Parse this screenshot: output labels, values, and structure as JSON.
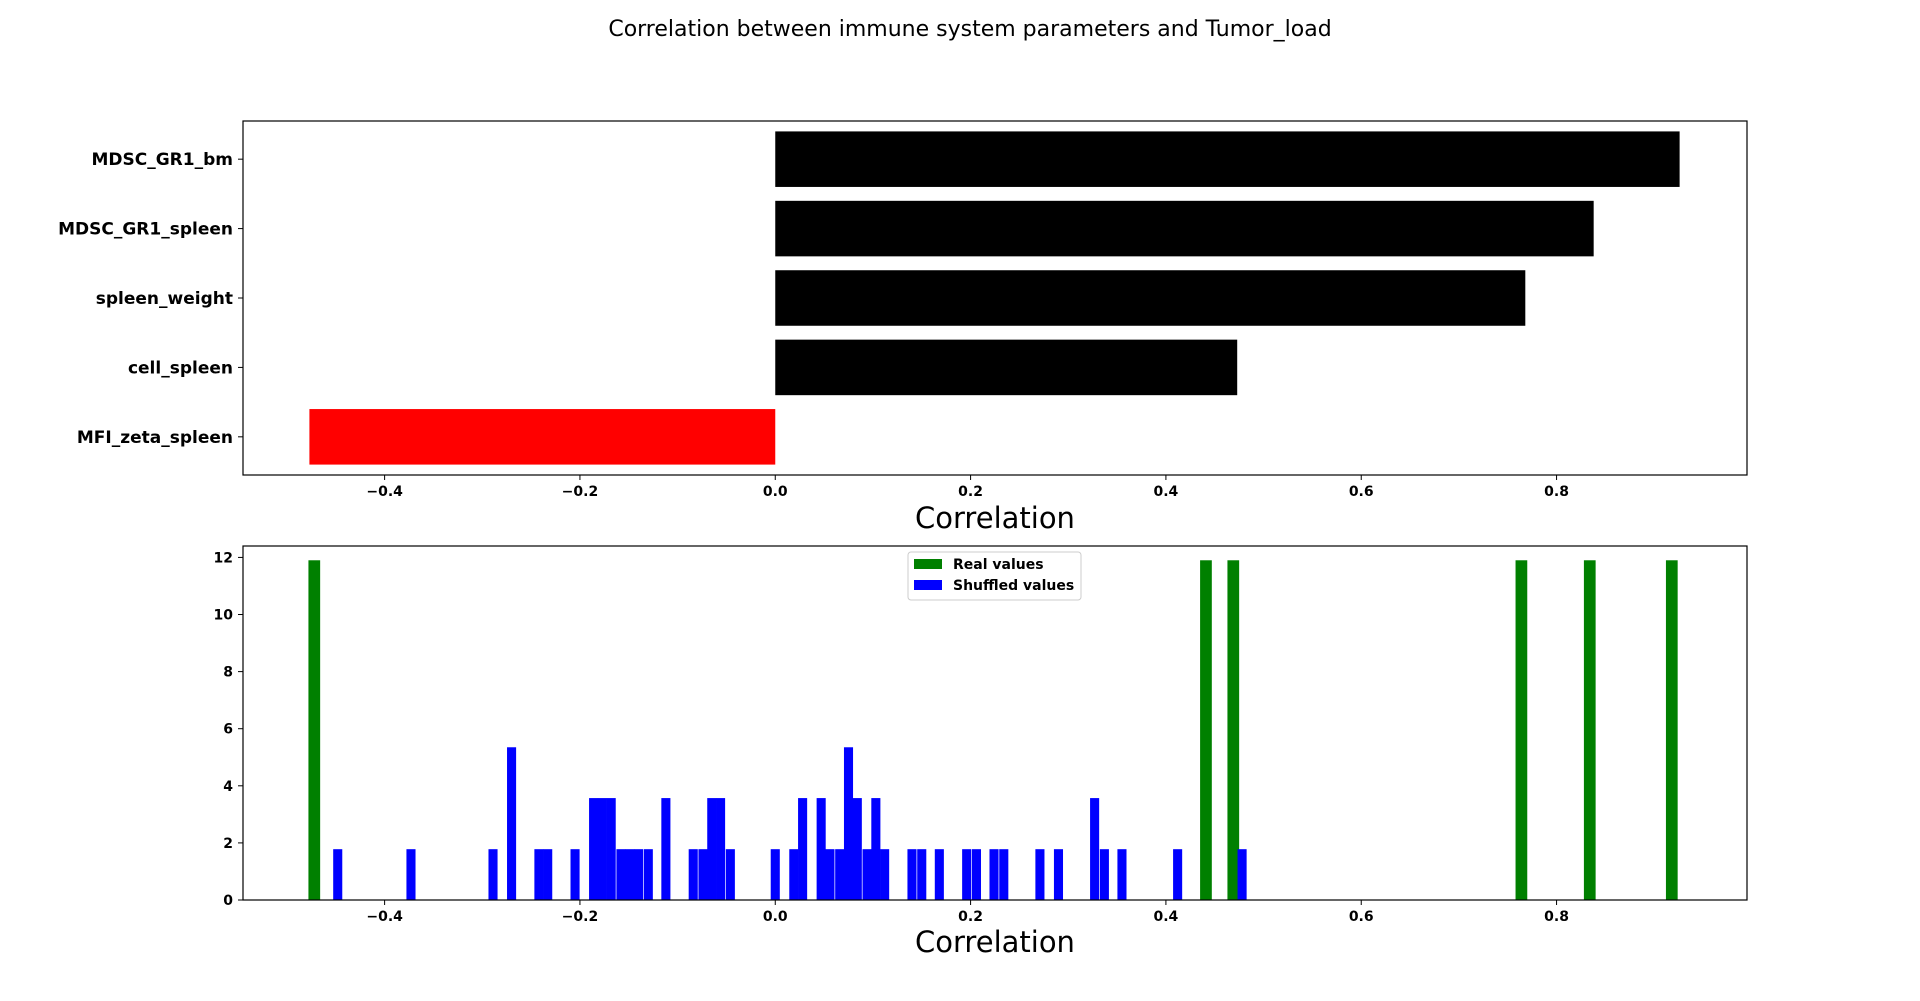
{
  "figure": {
    "suptitle": "Correlation between immune system parameters and Tumor_load"
  },
  "chart_data": [
    {
      "type": "bar",
      "orientation": "horizontal",
      "xlabel": "Correlation",
      "ylabel": "",
      "xlim": [
        -0.545,
        0.995
      ],
      "xticks": [
        -0.4,
        -0.2,
        0.0,
        0.2,
        0.4,
        0.6,
        0.8
      ],
      "xtick_labels": [
        "−0.4",
        "−0.2",
        "0.0",
        "0.2",
        "0.4",
        "0.6",
        "0.8"
      ],
      "grid": false,
      "categories": [
        "MDSC_GR1_bm",
        "MDSC_GR1_spleen",
        "spleen_weight",
        "cell_spleen",
        "MFI_zeta_spleen"
      ],
      "values": [
        0.926,
        0.838,
        0.768,
        0.473,
        -0.477
      ],
      "colors": [
        "#000000",
        "#000000",
        "#000000",
        "#000000",
        "#ff0000"
      ]
    },
    {
      "type": "histogram",
      "xlabel": "Correlation",
      "ylabel": "",
      "xlim": [
        -0.545,
        0.995
      ],
      "ylim": [
        0,
        12.4
      ],
      "xticks": [
        -0.4,
        -0.2,
        0.0,
        0.2,
        0.4,
        0.6,
        0.8
      ],
      "xtick_labels": [
        "−0.4",
        "−0.2",
        "0.0",
        "0.2",
        "0.4",
        "0.6",
        "0.8"
      ],
      "yticks": [
        0,
        2,
        4,
        6,
        8,
        10,
        12
      ],
      "ytick_labels": [
        "0",
        "2",
        "4",
        "6",
        "8",
        "10",
        "12"
      ],
      "grid": false,
      "legend_position": "upper-center",
      "series": [
        {
          "name": "Real values",
          "color": "#008000",
          "bar_width": 0.012,
          "points": [
            [
              -0.472,
              11.9
            ],
            [
              0.441,
              11.9
            ],
            [
              0.469,
              11.9
            ],
            [
              0.764,
              11.9
            ],
            [
              0.834,
              11.9
            ],
            [
              0.918,
              11.9
            ]
          ]
        },
        {
          "name": "Shuffled values",
          "color": "#0000ff",
          "bar_width": 0.0093,
          "points": [
            [
              -0.448,
              1.78
            ],
            [
              -0.373,
              1.78
            ],
            [
              -0.289,
              1.78
            ],
            [
              -0.27,
              5.35
            ],
            [
              -0.242,
              1.78
            ],
            [
              -0.233,
              1.78
            ],
            [
              -0.205,
              1.78
            ],
            [
              -0.186,
              3.57
            ],
            [
              -0.177,
              3.57
            ],
            [
              -0.168,
              3.57
            ],
            [
              -0.158,
              1.78
            ],
            [
              -0.149,
              1.78
            ],
            [
              -0.14,
              1.78
            ],
            [
              -0.13,
              1.78
            ],
            [
              -0.112,
              3.57
            ],
            [
              -0.084,
              1.78
            ],
            [
              -0.074,
              1.78
            ],
            [
              -0.065,
              3.57
            ],
            [
              -0.056,
              3.57
            ],
            [
              -0.046,
              1.78
            ],
            [
              0.0,
              1.78
            ],
            [
              0.019,
              1.78
            ],
            [
              0.028,
              3.57
            ],
            [
              0.047,
              3.57
            ],
            [
              0.056,
              1.78
            ],
            [
              0.066,
              1.78
            ],
            [
              0.075,
              5.35
            ],
            [
              0.084,
              3.57
            ],
            [
              0.094,
              1.78
            ],
            [
              0.103,
              3.57
            ],
            [
              0.112,
              1.78
            ],
            [
              0.14,
              1.78
            ],
            [
              0.15,
              1.78
            ],
            [
              0.168,
              1.78
            ],
            [
              0.196,
              1.78
            ],
            [
              0.206,
              1.78
            ],
            [
              0.224,
              1.78
            ],
            [
              0.234,
              1.78
            ],
            [
              0.271,
              1.78
            ],
            [
              0.29,
              1.78
            ],
            [
              0.327,
              3.57
            ],
            [
              0.337,
              1.78
            ],
            [
              0.355,
              1.78
            ],
            [
              0.412,
              1.78
            ],
            [
              0.478,
              1.78
            ]
          ]
        }
      ]
    }
  ]
}
